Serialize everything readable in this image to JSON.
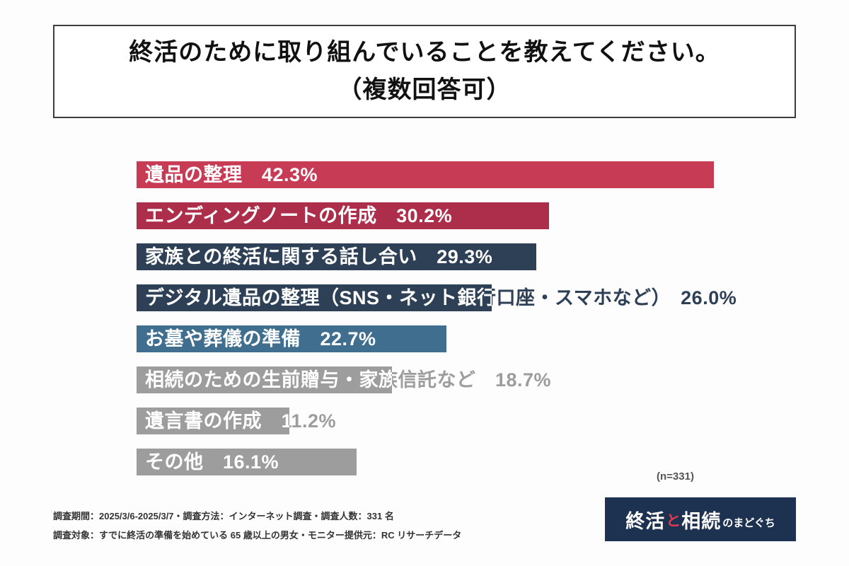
{
  "title": {
    "line1": "終活のために取り組んでいることを教えてください。",
    "line2": "（複数回答可）"
  },
  "chart_data": {
    "type": "bar",
    "orientation": "horizontal",
    "unit": "%",
    "title": "終活のために取り組んでいることを教えてください。（複数回答可）",
    "categories": [
      "遺品の整理",
      "エンディングノートの作成",
      "家族との終活に関する話し合い",
      "デジタル遺品の整理（SNS・ネット銀行口座・スマホなど）",
      "お墓や葬儀の準備",
      "相続のための生前贈与・家族信託など",
      "遺言書の作成",
      "その他"
    ],
    "values": [
      42.3,
      30.2,
      29.3,
      26.0,
      22.7,
      18.7,
      11.2,
      16.1
    ],
    "bar_colors": [
      "#c83b54",
      "#ad2e4b",
      "#2e4056",
      "#2e4056",
      "#3f6e8e",
      "#9d9d9d",
      "#9d9d9d",
      "#9d9d9d"
    ],
    "xlim": [
      0,
      44
    ],
    "sample_label": "(n=331)",
    "grid": false,
    "legend": false
  },
  "footer": {
    "line1": "調査期間：2025/3/6-2025/3/7・調査方法：インターネット調査・調査人数：331 名",
    "line2": "調査対象：すでに終活の準備を始めている 65 歳以上の男女・モニター提供元：RC リサーチデータ"
  },
  "logo": {
    "part1": "終活",
    "part2": "と",
    "part3": "相続",
    "part4": "のまどぐち",
    "accent_color": "#e03a4e",
    "bg_color": "#1d3150"
  }
}
